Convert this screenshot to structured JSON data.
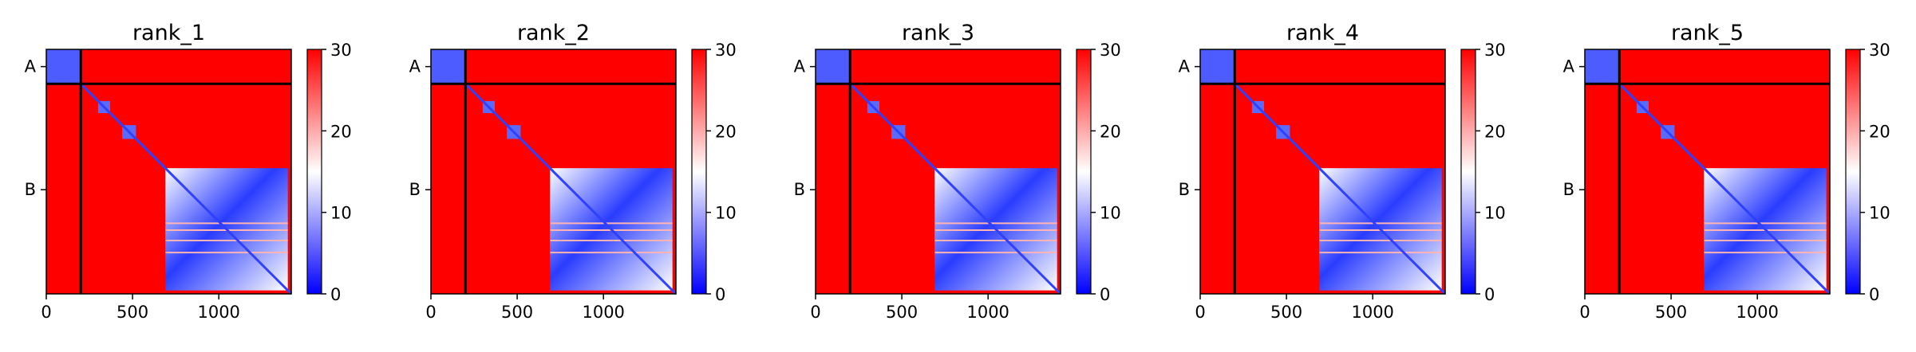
{
  "figure": {
    "colormap": {
      "low": "#0000ff",
      "mid": "#ffffff",
      "high": "#ff0000"
    }
  },
  "chart_data": [
    {
      "type": "heatmap",
      "title": "rank_1",
      "x_ticks": [
        0,
        500,
        1000
      ],
      "x_tick_labels": [
        "0",
        "500",
        "1000"
      ],
      "xlim": [
        0,
        1420
      ],
      "y_ticks": [
        {
          "label": "A",
          "value": 100
        },
        {
          "label": "B",
          "value": 815
        }
      ],
      "ylim": [
        1420,
        0
      ],
      "chain_boundary": 200,
      "colorbar": {
        "vmin": 0,
        "vmax": 30,
        "ticks": [
          0,
          10,
          20,
          30
        ],
        "tick_labels": [
          "0",
          "10",
          "20",
          "30"
        ]
      }
    },
    {
      "type": "heatmap",
      "title": "rank_2",
      "x_ticks": [
        0,
        500,
        1000
      ],
      "x_tick_labels": [
        "0",
        "500",
        "1000"
      ],
      "xlim": [
        0,
        1420
      ],
      "y_ticks": [
        {
          "label": "A",
          "value": 100
        },
        {
          "label": "B",
          "value": 815
        }
      ],
      "ylim": [
        1420,
        0
      ],
      "chain_boundary": 200,
      "colorbar": {
        "vmin": 0,
        "vmax": 30,
        "ticks": [
          0,
          10,
          20,
          30
        ],
        "tick_labels": [
          "0",
          "10",
          "20",
          "30"
        ]
      }
    },
    {
      "type": "heatmap",
      "title": "rank_3",
      "x_ticks": [
        0,
        500,
        1000
      ],
      "x_tick_labels": [
        "0",
        "500",
        "1000"
      ],
      "xlim": [
        0,
        1420
      ],
      "y_ticks": [
        {
          "label": "A",
          "value": 100
        },
        {
          "label": "B",
          "value": 815
        }
      ],
      "ylim": [
        1420,
        0
      ],
      "chain_boundary": 200,
      "colorbar": {
        "vmin": 0,
        "vmax": 30,
        "ticks": [
          0,
          10,
          20,
          30
        ],
        "tick_labels": [
          "0",
          "10",
          "20",
          "30"
        ]
      }
    },
    {
      "type": "heatmap",
      "title": "rank_4",
      "x_ticks": [
        0,
        500,
        1000
      ],
      "x_tick_labels": [
        "0",
        "500",
        "1000"
      ],
      "xlim": [
        0,
        1420
      ],
      "y_ticks": [
        {
          "label": "A",
          "value": 100
        },
        {
          "label": "B",
          "value": 815
        }
      ],
      "ylim": [
        1420,
        0
      ],
      "chain_boundary": 200,
      "colorbar": {
        "vmin": 0,
        "vmax": 30,
        "ticks": [
          0,
          10,
          20,
          30
        ],
        "tick_labels": [
          "0",
          "10",
          "20",
          "30"
        ]
      }
    },
    {
      "type": "heatmap",
      "title": "rank_5",
      "x_ticks": [
        0,
        500,
        1000
      ],
      "x_tick_labels": [
        "0",
        "500",
        "1000"
      ],
      "xlim": [
        0,
        1420
      ],
      "y_ticks": [
        {
          "label": "A",
          "value": 100
        },
        {
          "label": "B",
          "value": 815
        }
      ],
      "ylim": [
        1420,
        0
      ],
      "chain_boundary": 200,
      "colorbar": {
        "vmin": 0,
        "vmax": 30,
        "ticks": [
          0,
          10,
          20,
          30
        ],
        "tick_labels": [
          "0",
          "10",
          "20",
          "30"
        ]
      }
    }
  ]
}
